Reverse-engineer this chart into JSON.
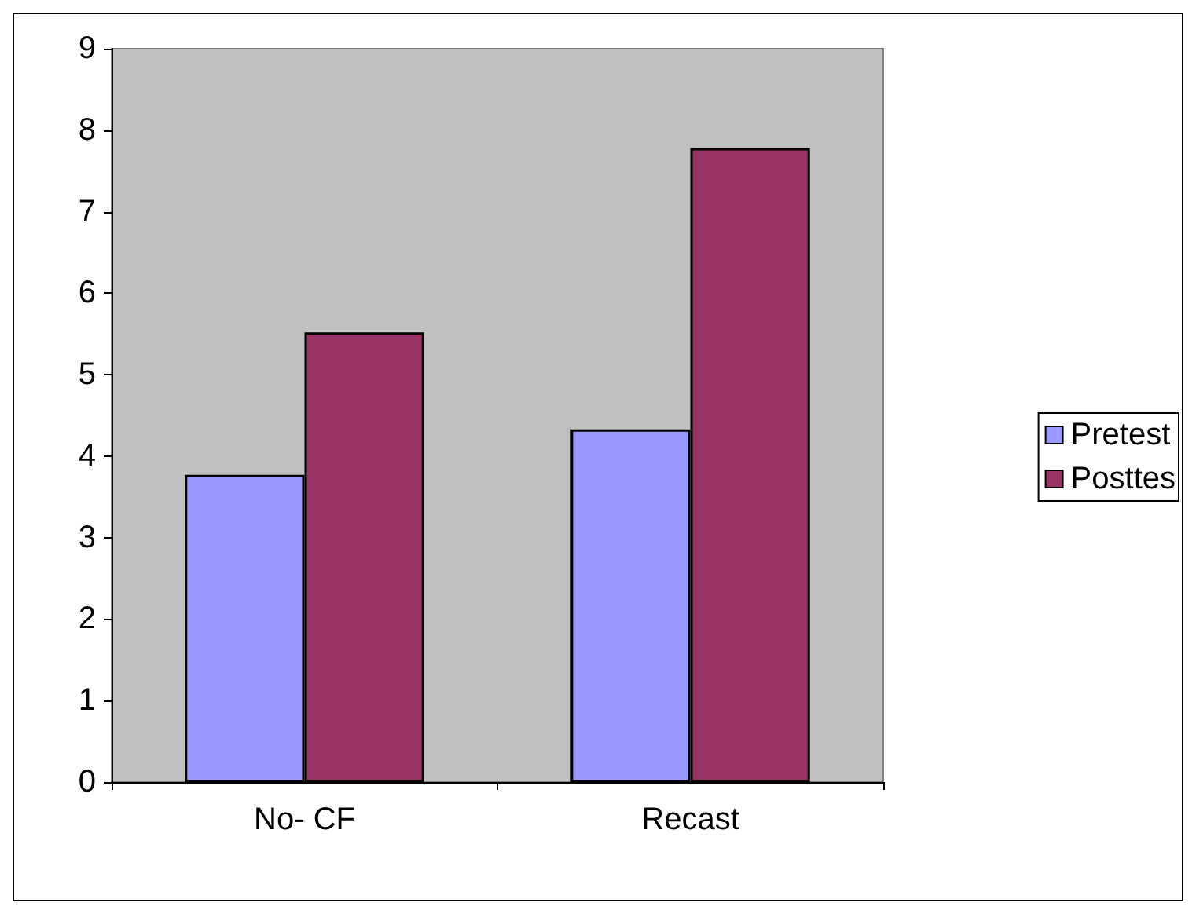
{
  "chart_data": {
    "type": "bar",
    "categories": [
      "No- CF",
      "Recast"
    ],
    "series": [
      {
        "name": "Pretest",
        "color": "#9999ff",
        "values": [
          3.77,
          4.33
        ]
      },
      {
        "name": "Posttes",
        "color": "#993366",
        "values": [
          5.52,
          7.78
        ]
      }
    ],
    "ylim": [
      0,
      9
    ],
    "yticks": [
      0,
      1,
      2,
      3,
      4,
      5,
      6,
      7,
      8,
      9
    ],
    "grid": false,
    "legend": "right"
  }
}
